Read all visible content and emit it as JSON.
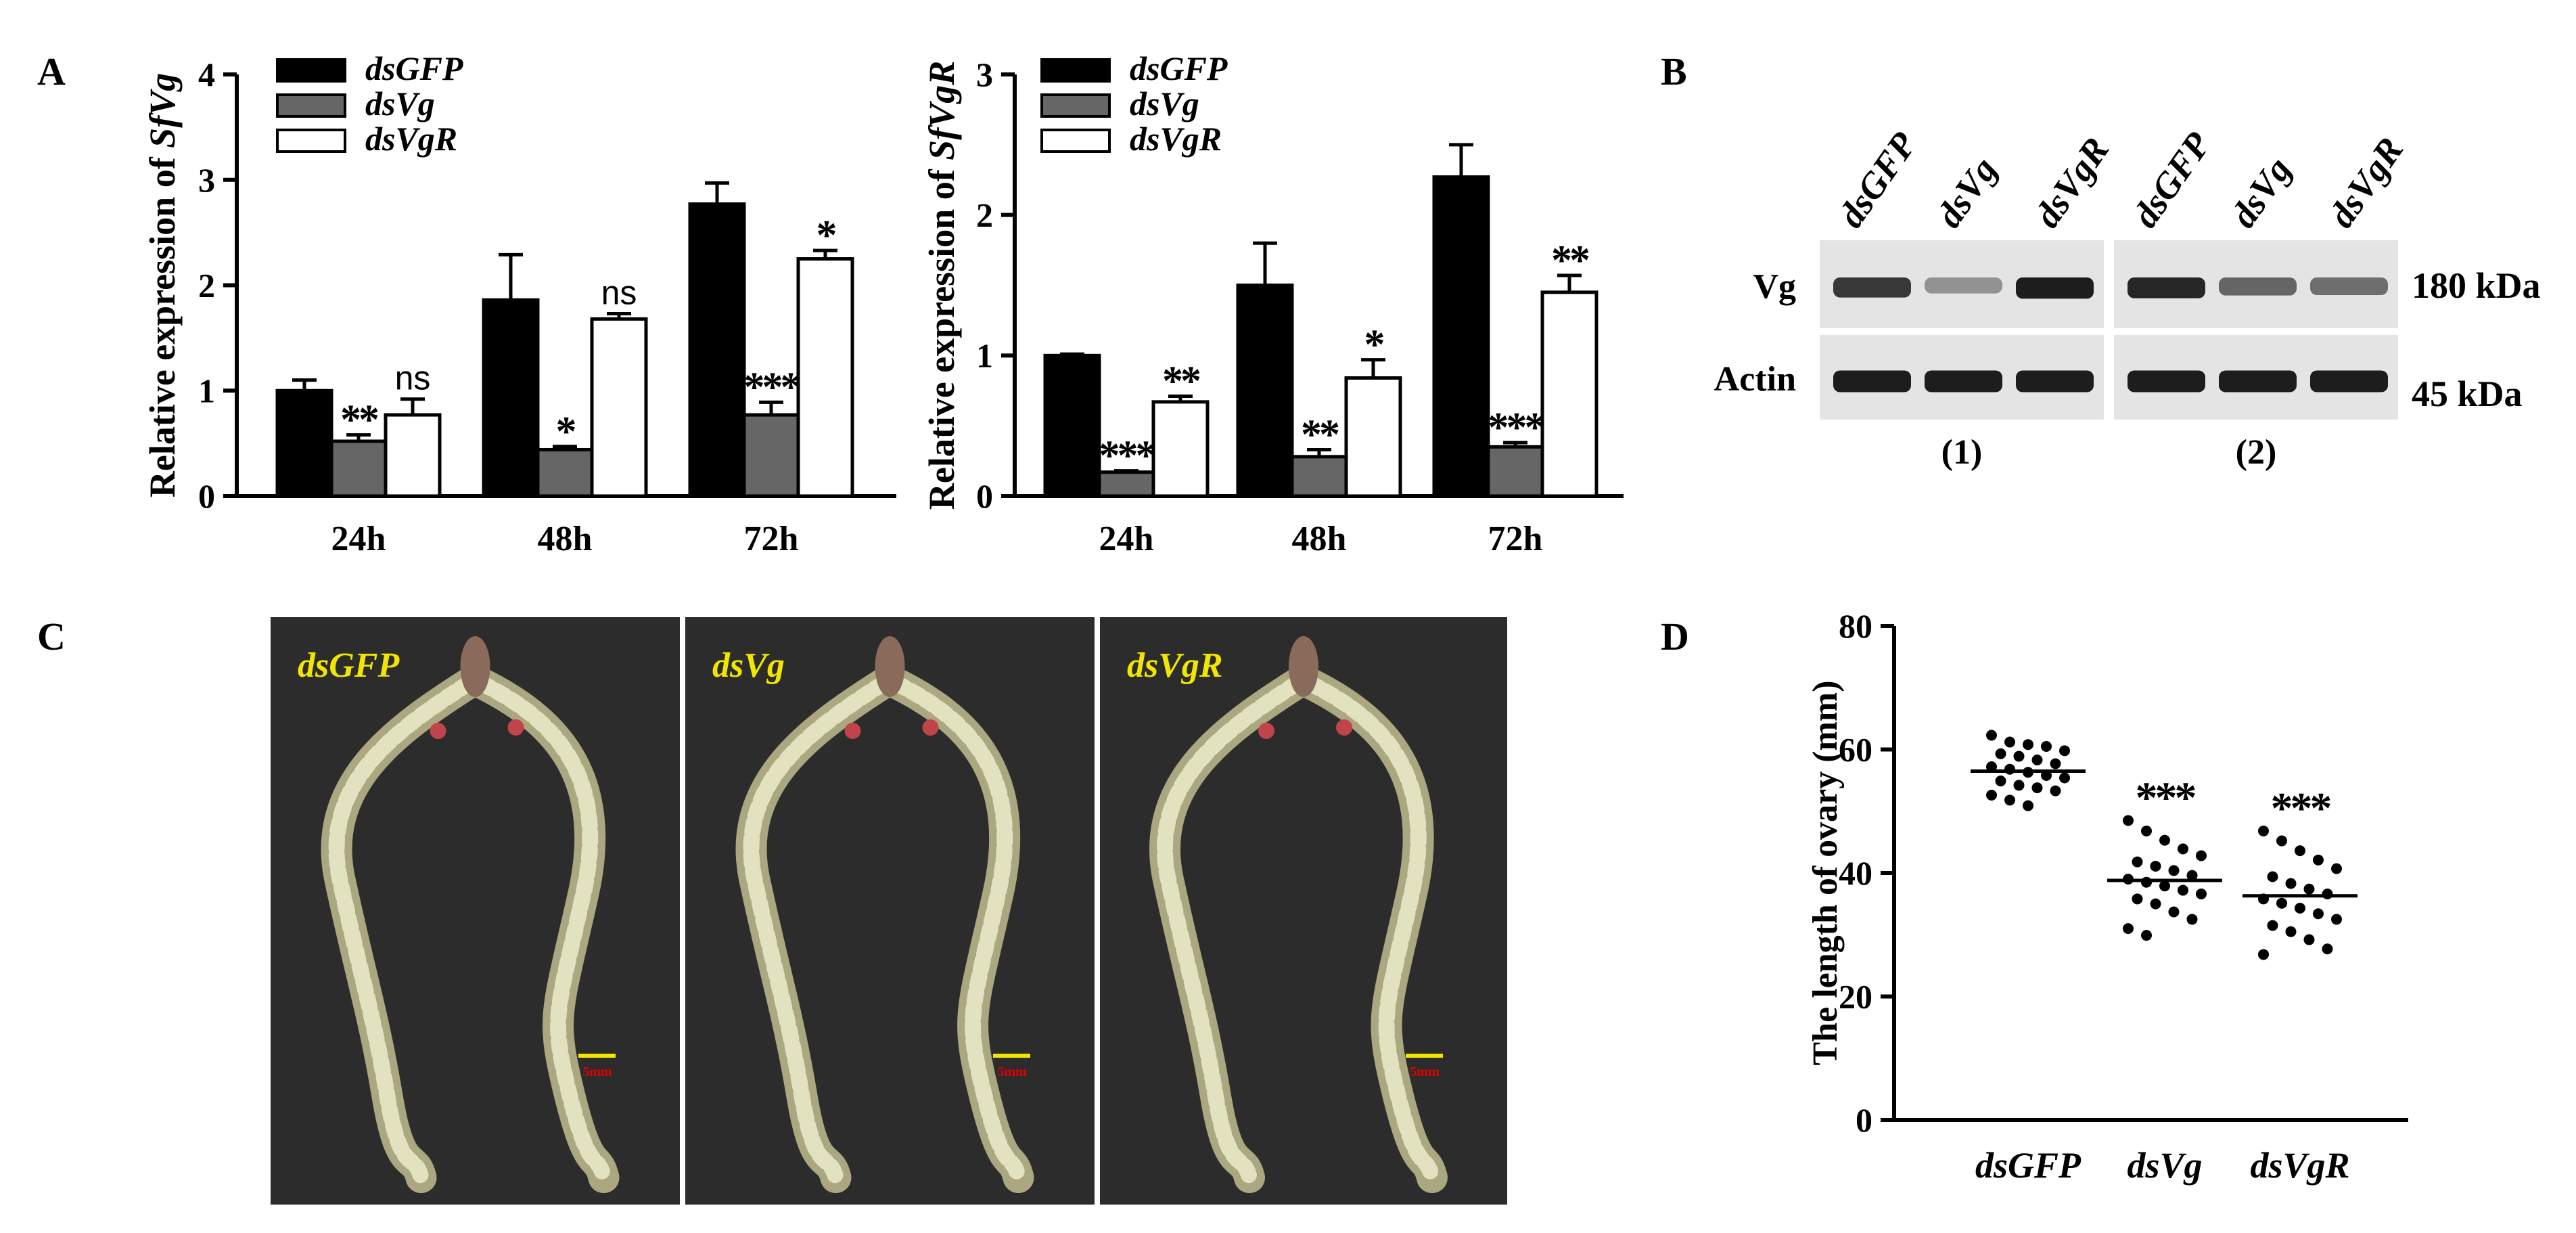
{
  "panel_labels": {
    "a": "A",
    "b": "B",
    "c": "C",
    "d": "D"
  },
  "colors": {
    "dsGFP": "#000000",
    "dsVg": "#666666",
    "dsVgR": "#ffffff",
    "photo_bg": "#2c2c2c",
    "photo_label": "#f2e600",
    "scale_bar": "#f2e600",
    "scale_text": "#e00000"
  },
  "chart_data": [
    {
      "type": "bar",
      "ylabel_prefix": "Relative expression of ",
      "ylabel_gene": "SfVg",
      "categories": [
        "24h",
        "48h",
        "72h"
      ],
      "ylim": [
        0,
        4
      ],
      "yticks": [
        "0",
        "1",
        "2",
        "3",
        "4"
      ],
      "series": [
        {
          "name": "dsGFP",
          "values": [
            1.0,
            1.86,
            2.77
          ],
          "errors": [
            0.1,
            0.43,
            0.2
          ],
          "marks": [
            "",
            "",
            ""
          ]
        },
        {
          "name": "dsVg",
          "values": [
            0.52,
            0.44,
            0.77
          ],
          "errors": [
            0.06,
            0.03,
            0.12
          ],
          "marks": [
            "**",
            "*",
            "***"
          ]
        },
        {
          "name": "dsVgR",
          "values": [
            0.77,
            1.68,
            2.25
          ],
          "errors": [
            0.15,
            0.05,
            0.08
          ],
          "marks": [
            "ns",
            "ns",
            "*"
          ]
        }
      ]
    },
    {
      "type": "bar",
      "ylabel_prefix": "Relative expression of ",
      "ylabel_gene": "SfVgR",
      "categories": [
        "24h",
        "48h",
        "72h"
      ],
      "ylim": [
        0,
        3
      ],
      "yticks": [
        "0",
        "1",
        "2",
        "3"
      ],
      "series": [
        {
          "name": "dsGFP",
          "values": [
            1.0,
            1.5,
            2.27
          ],
          "errors": [
            0.01,
            0.3,
            0.23
          ],
          "marks": [
            "",
            "",
            ""
          ]
        },
        {
          "name": "dsVg",
          "values": [
            0.17,
            0.28,
            0.35
          ],
          "errors": [
            0.01,
            0.05,
            0.03
          ],
          "marks": [
            "***",
            "**",
            "***"
          ]
        },
        {
          "name": "dsVgR",
          "values": [
            0.67,
            0.84,
            1.45
          ],
          "errors": [
            0.04,
            0.13,
            0.12
          ],
          "marks": [
            "**",
            "*",
            "**"
          ]
        }
      ]
    },
    {
      "type": "scatter",
      "ylabel": "The length of ovary (mm)",
      "categories": [
        "dsGFP",
        "dsVg",
        "dsVgR"
      ],
      "ylim": [
        0,
        80
      ],
      "yticks": [
        "0",
        "20",
        "40",
        "60",
        "80"
      ],
      "means": [
        56.5,
        38.8,
        36.3
      ],
      "marks": [
        "",
        "***",
        "***"
      ],
      "points": [
        [
          62.3,
          61.2,
          60.8,
          60.5,
          59.8,
          59.3,
          58.9,
          58.3,
          57.7,
          57.2,
          56.8,
          56.3,
          55.8,
          55.4,
          54.9,
          54.2,
          53.8,
          53.3,
          52.6,
          51.8,
          50.9
        ],
        [
          48.5,
          46.8,
          45.3,
          43.9,
          42.8,
          41.8,
          41.1,
          40.4,
          39.6,
          39.0,
          38.5,
          37.9,
          37.2,
          36.6,
          35.8,
          35.0,
          33.7,
          32.5,
          31.0,
          29.9
        ],
        [
          46.8,
          45.2,
          43.6,
          42.1,
          40.7,
          39.4,
          38.3,
          37.4,
          36.6,
          35.8,
          35.1,
          34.3,
          33.4,
          32.5,
          31.5,
          30.5,
          29.2,
          27.7,
          26.8
        ]
      ]
    }
  ],
  "western": {
    "lanes": [
      "dsGFP",
      "dsVg",
      "dsVgR"
    ],
    "rows": [
      "Vg",
      "Actin"
    ],
    "sizes": [
      "180 kDa",
      "45 kDa"
    ],
    "groups": [
      "(1)",
      "(2)"
    ],
    "vg_intensity": [
      [
        0.8,
        0.3,
        0.95
      ],
      [
        0.9,
        0.55,
        0.5
      ]
    ],
    "actin_intensity": [
      [
        0.95,
        0.95,
        0.95
      ],
      [
        0.95,
        0.95,
        0.95
      ]
    ]
  },
  "photos": {
    "labels": [
      "dsGFP",
      "dsVg",
      "dsVgR"
    ],
    "scale": "5mm"
  }
}
